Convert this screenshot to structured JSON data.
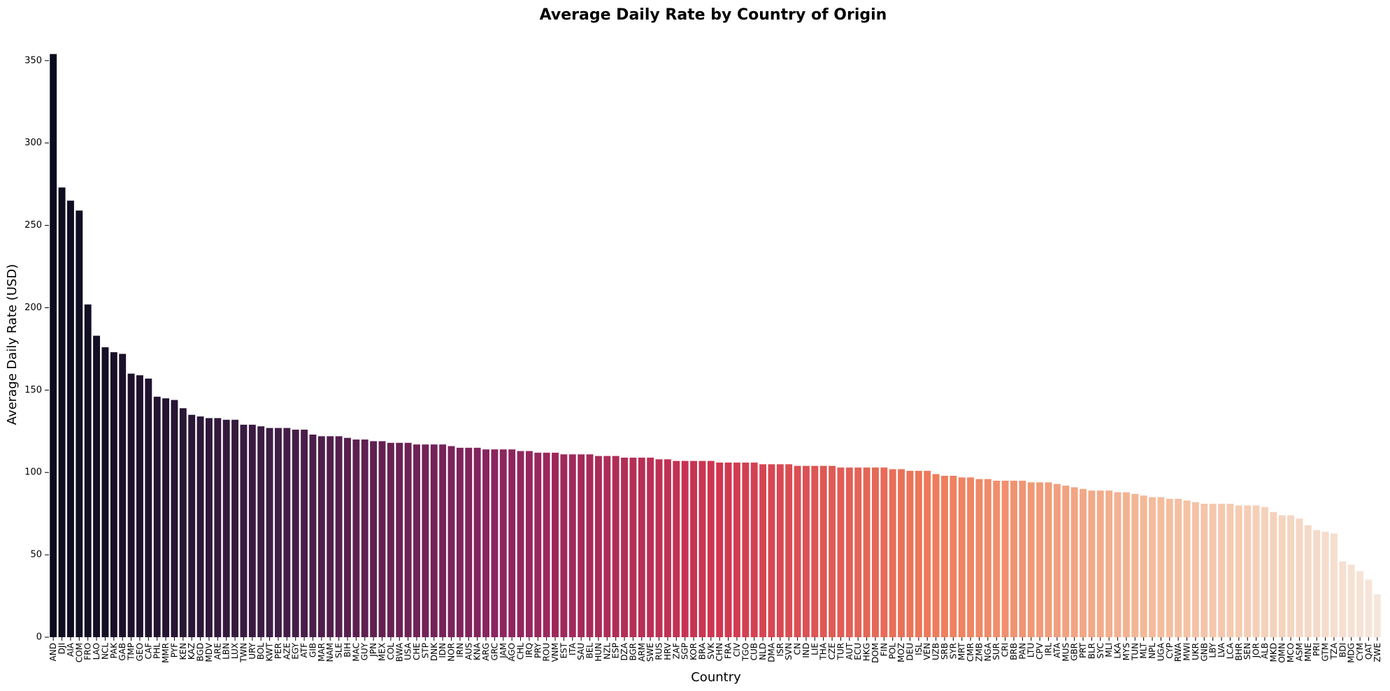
{
  "chart_data": {
    "type": "bar",
    "title": "Average Daily Rate by Country of Origin",
    "xlabel": "Country",
    "ylabel": "Average Daily Rate (USD)",
    "categories": [
      "AND",
      "DJI",
      "AIA",
      "COM",
      "FRO",
      "LAO",
      "NCL",
      "PAK",
      "GAB",
      "TMP",
      "GEO",
      "CAF",
      "PHL",
      "MMR",
      "PYF",
      "KEN",
      "KAZ",
      "BGD",
      "MDV",
      "ARE",
      "LBN",
      "LUX",
      "TWN",
      "URY",
      "BOL",
      "KWT",
      "PER",
      "AZE",
      "EGY",
      "ATF",
      "GIB",
      "MAR",
      "NAM",
      "SLE",
      "BIH",
      "MAC",
      "GUY",
      "JPN",
      "MEX",
      "COL",
      "BWA",
      "USA",
      "CHE",
      "STP",
      "DNK",
      "IDN",
      "NOR",
      "IRN",
      "AUS",
      "KNA",
      "ARG",
      "GRC",
      "JAM",
      "AGO",
      "CHL",
      "IRQ",
      "PRY",
      "ROU",
      "VNM",
      "EST",
      "ITA",
      "SAU",
      "BEL",
      "HUN",
      "NZL",
      "ESP",
      "DZA",
      "BGR",
      "ARM",
      "SWE",
      "RUS",
      "HRV",
      "ZAF",
      "SGP",
      "KOR",
      "BRA",
      "SVK",
      "CHN",
      "FRA",
      "CIV",
      "TGO",
      "CUB",
      "NLD",
      "DMA",
      "ISR",
      "SVN",
      "CN",
      "IND",
      "LIE",
      "THA",
      "CZE",
      "TUR",
      "AUT",
      "ECU",
      "HKG",
      "DOM",
      "FIN",
      "POL",
      "MOZ",
      "DEU",
      "ISL",
      "VEN",
      "UZB",
      "SRB",
      "SYR",
      "MRT",
      "CMR",
      "ZMB",
      "NGA",
      "SUR",
      "CRI",
      "BRB",
      "PAN",
      "LTU",
      "CPV",
      "IRL",
      "ATA",
      "MUS",
      "GBR",
      "PRT",
      "BLR",
      "SYC",
      "MLI",
      "LKA",
      "MYS",
      "TUN",
      "MLT",
      "NPL",
      "UGA",
      "CYP",
      "RWA",
      "MWI",
      "UKR",
      "GNB",
      "LBY",
      "LVA",
      "LCA",
      "BHR",
      "SEN",
      "JOR",
      "ALB",
      "MKD",
      "OMN",
      "MCO",
      "ASM",
      "MNE",
      "PRI",
      "GTM",
      "TZA",
      "BDI",
      "MDG",
      "CYM",
      "QAT",
      "ZWE"
    ],
    "values": [
      354,
      273,
      265,
      259,
      202,
      183,
      176,
      173,
      172,
      160,
      159,
      157,
      146,
      145,
      144,
      139,
      135,
      134,
      133,
      133,
      132,
      132,
      129,
      129,
      128,
      127,
      127,
      127,
      126,
      126,
      123,
      122,
      122,
      122,
      121,
      120,
      120,
      119,
      119,
      118,
      118,
      118,
      117,
      117,
      117,
      117,
      116,
      115,
      115,
      115,
      114,
      114,
      114,
      114,
      113,
      113,
      112,
      112,
      112,
      111,
      111,
      111,
      111,
      110,
      110,
      110,
      109,
      109,
      109,
      109,
      108,
      108,
      107,
      107,
      107,
      107,
      107,
      106,
      106,
      106,
      106,
      106,
      105,
      105,
      105,
      105,
      104,
      104,
      104,
      104,
      104,
      103,
      103,
      103,
      103,
      103,
      103,
      102,
      102,
      101,
      101,
      101,
      99,
      98,
      98,
      97,
      97,
      96,
      96,
      95,
      95,
      95,
      95,
      94,
      94,
      94,
      93,
      92,
      91,
      90,
      89,
      89,
      89,
      88,
      88,
      87,
      86,
      85,
      85,
      84,
      84,
      83,
      82,
      81,
      81,
      81,
      81,
      80,
      80,
      80,
      79,
      76,
      74,
      74,
      72,
      68,
      65,
      64,
      63,
      46,
      44,
      40,
      35,
      26
    ],
    "color_stops": [
      "#0b0b1e",
      "#3f1d46",
      "#8a2460",
      "#cf3550",
      "#ee7c5a",
      "#f4bc9b",
      "#f6e6da"
    ],
    "ylim": [
      0,
      355
    ],
    "yticks": [
      0,
      50,
      100,
      150,
      200,
      250,
      300,
      350
    ]
  }
}
